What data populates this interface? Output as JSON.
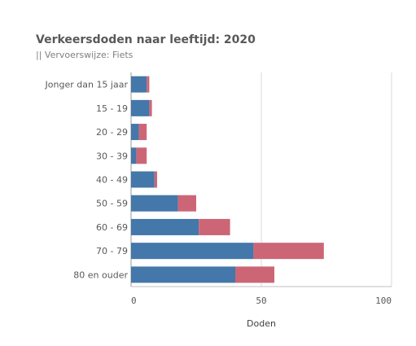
{
  "chart_data": {
    "type": "bar",
    "orientation": "horizontal",
    "stacked": true,
    "title": "Verkeersdoden naar leeftijd: 2020",
    "subtitle": "|| Vervoerswijze: Fiets",
    "xlabel": "Doden",
    "ylabel": "",
    "xlim": [
      0,
      100
    ],
    "xticks": [
      0,
      50,
      100
    ],
    "grid": true,
    "legend": "none",
    "categories": [
      "Jonger dan 15 jaar",
      "15-19",
      "20-29",
      "30-39",
      "40-49",
      "50-59",
      "60-69",
      "70-79",
      "80 en ouder"
    ],
    "category_labels": [
      "Jonger dan 15 jaar",
      "15 - 19",
      "20 - 29",
      "30 - 39",
      "40 - 49",
      "50 - 59",
      "60 - 69",
      "70 - 79",
      "80 en ouder"
    ],
    "series": [
      {
        "color": "#4477aa",
        "values": [
          6,
          7,
          3,
          2,
          9,
          18,
          26,
          47,
          40
        ]
      },
      {
        "color": "#cc6677",
        "values": [
          1,
          1,
          3,
          4,
          1,
          7,
          12,
          27,
          15
        ]
      }
    ]
  }
}
